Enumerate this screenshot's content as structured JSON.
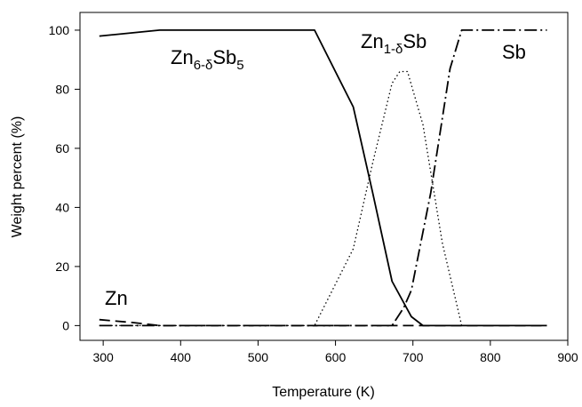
{
  "chart_data": {
    "type": "line",
    "title": "",
    "xlabel": "Temperature (K)",
    "ylabel": "Weight percent (%)",
    "xlim": [
      270,
      900
    ],
    "ylim": [
      -5,
      106
    ],
    "xticks": [
      300,
      400,
      500,
      600,
      700,
      800,
      900
    ],
    "yticks": [
      0,
      20,
      40,
      60,
      80,
      100
    ],
    "grid": false,
    "legend": "none",
    "series": [
      {
        "name": "Zn6-δSb5",
        "label_parts": [
          {
            "t": "Zn"
          },
          {
            "t": "6-δ",
            "sub": true
          },
          {
            "t": "Sb"
          },
          {
            "t": "5",
            "sub": true
          }
        ],
        "style": "solid",
        "color": "#000000",
        "x": [
          295,
          373,
          573,
          623,
          648,
          673,
          698,
          713,
          873
        ],
        "y": [
          98,
          100,
          100,
          74,
          45,
          15,
          3,
          0,
          0
        ]
      },
      {
        "name": "Zn1-δSb",
        "label_parts": [
          {
            "t": "Zn"
          },
          {
            "t": "1-δ",
            "sub": true
          },
          {
            "t": "Sb"
          }
        ],
        "style": "dotted",
        "color": "#000000",
        "x": [
          295,
          573,
          623,
          648,
          673,
          683,
          693,
          713,
          738,
          763,
          873
        ],
        "y": [
          0,
          0,
          26,
          55,
          82,
          86,
          86,
          68,
          28,
          0,
          0
        ]
      },
      {
        "name": "Sb",
        "label_parts": [
          {
            "t": "Sb"
          }
        ],
        "style": "dashdot",
        "color": "#000000",
        "x": [
          295,
          673,
          688,
          698,
          723,
          748,
          763,
          873
        ],
        "y": [
          0,
          0,
          6,
          12,
          45,
          87,
          100,
          100
        ]
      },
      {
        "name": "Zn",
        "label_parts": [
          {
            "t": "Zn"
          }
        ],
        "style": "dashed",
        "color": "#000000",
        "x": [
          295,
          340,
          373,
          873
        ],
        "y": [
          2,
          1,
          0,
          0
        ]
      }
    ]
  }
}
